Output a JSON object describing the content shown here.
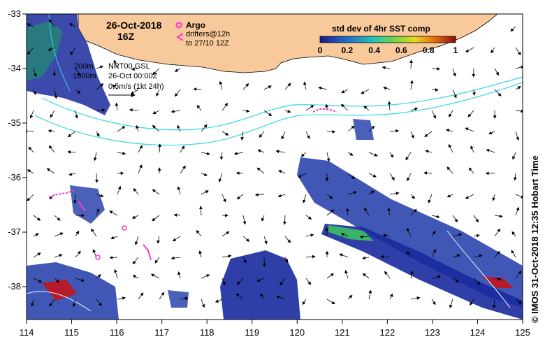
{
  "title": {
    "date": "26-Oct-2018",
    "hour": "16Z"
  },
  "legend": {
    "argo_label": "Argo",
    "drifters_line1": "drifters@12h",
    "drifters_line2": "to 27/10 12Z",
    "colorbar_title": "std dev of 4hr SST comp",
    "colorbar_ticks": [
      "0",
      "0.2",
      "0.4",
      "0.6",
      "0.8",
      "1"
    ]
  },
  "contours": {
    "label_200": "200m",
    "label_1000": "1000m"
  },
  "current_info": {
    "line1": "NRT00 GSL",
    "line2": "26-Oct 00:00Z",
    "scale_label": "0.5m/s (1kt 24h)"
  },
  "axes": {
    "x_ticks": [
      "114",
      "115",
      "116",
      "117",
      "118",
      "119",
      "120",
      "121",
      "122",
      "123",
      "124",
      "125"
    ],
    "y_ticks": [
      "-33",
      "-34",
      "-35",
      "-36",
      "-37",
      "-38"
    ]
  },
  "credit": "© IMOS 31-Oct-2018 12:35 Hobart Time",
  "colors": {
    "land": "#f8c99a",
    "isobath": "#33d6e6",
    "drifter": "#ff33cc",
    "cold": "#1a2a9e",
    "warm": "#cc1010"
  }
}
